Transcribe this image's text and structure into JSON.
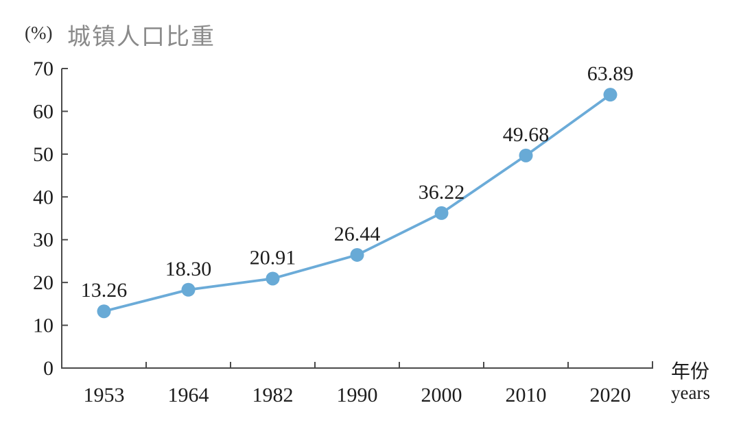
{
  "chart_data": {
    "type": "line",
    "title": "城镇人口比重",
    "unit_label": "(%)",
    "x_axis_label": "年份",
    "x_axis_label_en": "years",
    "categories": [
      "1953",
      "1964",
      "1982",
      "1990",
      "2000",
      "2010",
      "2020"
    ],
    "values": [
      13.26,
      18.3,
      20.91,
      26.44,
      36.22,
      49.68,
      63.89
    ],
    "value_labels": [
      "13.26",
      "18.30",
      "20.91",
      "26.44",
      "36.22",
      "49.68",
      "63.89"
    ],
    "y_ticks": [
      0,
      10,
      20,
      30,
      40,
      50,
      60,
      70
    ],
    "ylim": [
      0,
      70
    ],
    "grid": false,
    "legend": "none",
    "colors": {
      "line": "#6babd8",
      "point": "#68aad6",
      "axis": "#4a4a4a",
      "value_text": "#1c1c1c",
      "title_text": "#8a8a8a",
      "background": "#ffffff"
    }
  }
}
